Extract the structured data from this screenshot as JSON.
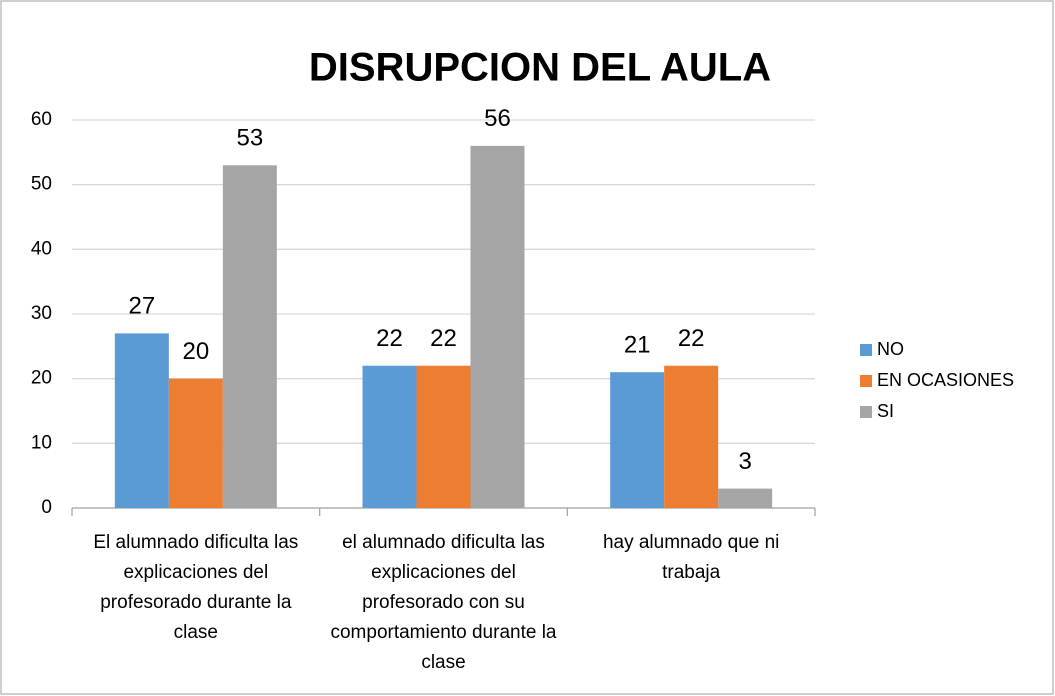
{
  "chart_data": {
    "type": "bar",
    "title": "DISRUPCION DEL AULA",
    "categories": [
      "El alumnado dificulta las explicaciones del profesorado durante la clase",
      "el alumnado dificulta las explicaciones del profesorado con su comportamiento durante la clase",
      "hay alumnado que ni trabaja"
    ],
    "series": [
      {
        "name": "NO",
        "color": "#5b9bd5",
        "values": [
          27,
          22,
          21
        ]
      },
      {
        "name": "EN OCASIONES",
        "color": "#ed7d31",
        "values": [
          20,
          22,
          22
        ]
      },
      {
        "name": "SI",
        "color": "#a5a5a5",
        "values": [
          53,
          56,
          3
        ]
      }
    ],
    "ylim": [
      0,
      60
    ],
    "yticks": [
      0,
      10,
      20,
      30,
      40,
      50,
      60
    ],
    "grid": true,
    "legend": "right"
  }
}
